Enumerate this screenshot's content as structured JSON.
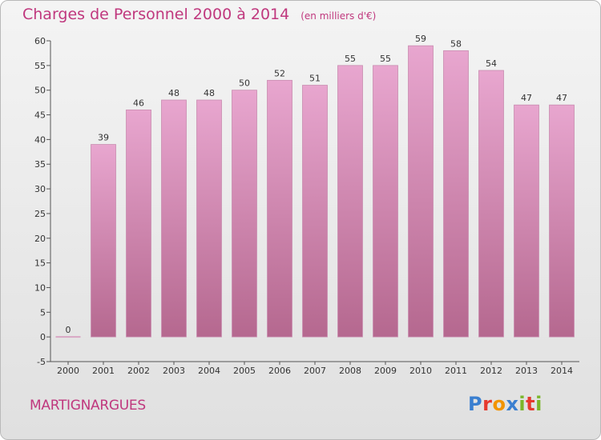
{
  "header": {
    "title": "Charges de Personnel 2000 à 2014",
    "unit": "(en milliers d'€)"
  },
  "footer": {
    "commune": "MARTIGNARGUES",
    "logo": [
      "P",
      "r",
      "o",
      "x",
      "i",
      "t",
      "i"
    ]
  },
  "colors": {
    "title": "#c0387e",
    "bar_top": "#e8a6cf",
    "bar_bottom": "#b5688f",
    "logo": [
      "#3a7fd0",
      "#e63a2e",
      "#f29400",
      "#3a7fd0",
      "#7ab62a",
      "#e63a2e",
      "#7ab62a"
    ]
  },
  "chart_data": {
    "type": "bar",
    "categories": [
      "2000",
      "2001",
      "2002",
      "2003",
      "2004",
      "2005",
      "2006",
      "2007",
      "2008",
      "2009",
      "2010",
      "2011",
      "2012",
      "2013",
      "2014"
    ],
    "values": [
      0,
      39,
      46,
      48,
      48,
      50,
      52,
      51,
      55,
      55,
      59,
      58,
      54,
      47,
      47
    ],
    "value_labels": [
      "0",
      "39",
      "46",
      "48",
      "48",
      "50",
      "52",
      "51",
      "55",
      "55",
      "59",
      "58",
      "54",
      "47",
      "47"
    ],
    "title": "Charges de Personnel 2000 à 2014",
    "ylim": [
      -5,
      60
    ],
    "yticks": [
      60,
      55,
      50,
      45,
      40,
      35,
      30,
      25,
      20,
      15,
      10,
      5,
      0,
      -5
    ],
    "ytick_labels": [
      "60",
      "55",
      "50",
      "45",
      "40",
      "35",
      "30",
      "25",
      "20",
      "15",
      "10",
      "5",
      "0",
      "-5"
    ],
    "grid": false,
    "legend": "none"
  }
}
